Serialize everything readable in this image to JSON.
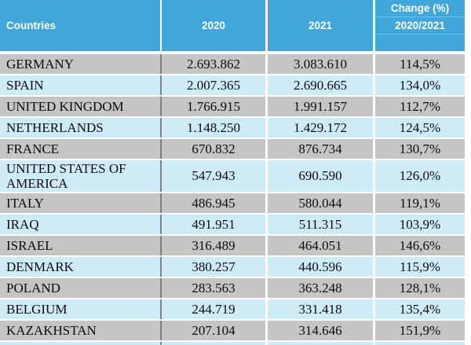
{
  "table": {
    "header": {
      "countries_label": "Countries",
      "col_2020": "2020",
      "col_2021": "2021",
      "change_line1": "Change (%)",
      "change_line2": "2020/2021"
    },
    "rows": [
      {
        "country": "GERMANY",
        "y2020": "2.693.862",
        "y2021": "3.083.610",
        "change": "114,5%"
      },
      {
        "country": "SPAIN",
        "y2020": "2.007.365",
        "y2021": "2.690.665",
        "change": "134,0%"
      },
      {
        "country": "UNITED KINGDOM",
        "y2020": "1.766.915",
        "y2021": "1.991.157",
        "change": "112,7%"
      },
      {
        "country": "NETHERLANDS",
        "y2020": "1.148.250",
        "y2021": "1.429.172",
        "change": "124,5%"
      },
      {
        "country": "FRANCE",
        "y2020": "670.832",
        "y2021": "876.734",
        "change": "130,7%"
      },
      {
        "country": "UNITED STATES OF AMERICA",
        "y2020": "547.943",
        "y2021": "690.590",
        "change": "126,0%"
      },
      {
        "country": "ITALY",
        "y2020": "486.945",
        "y2021": "580.044",
        "change": "119,1%"
      },
      {
        "country": "IRAQ",
        "y2020": "491.951",
        "y2021": "511.315",
        "change": "103,9%"
      },
      {
        "country": "ISRAEL",
        "y2020": "316.489",
        "y2021": "464.051",
        "change": "146,6%"
      },
      {
        "country": "DENMARK",
        "y2020": "380.257",
        "y2021": "440.596",
        "change": "115,9%"
      },
      {
        "country": "POLAND",
        "y2020": "283.563",
        "y2021": "363.248",
        "change": "128,1%"
      },
      {
        "country": "BELGIUM",
        "y2020": "244.719",
        "y2021": "331.418",
        "change": "135,4%"
      },
      {
        "country": "KAZAKHSTAN",
        "y2020": "207.104",
        "y2021": "314.646",
        "change": "151,9%"
      }
    ]
  },
  "colors": {
    "header_bg": "#41a7db",
    "header_text": "#ffffff",
    "header_divider": "#72c2e8",
    "row_gray": "#c5c5c5",
    "row_blue": "#ceebf8",
    "body_text": "#0b0b10",
    "divider_dark": "#808080"
  }
}
